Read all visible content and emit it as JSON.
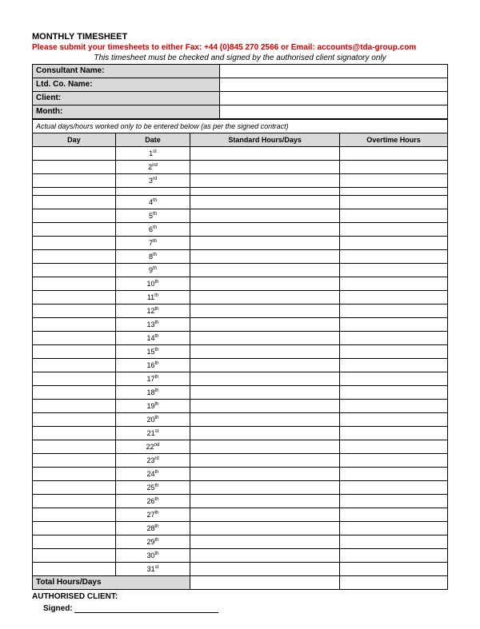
{
  "title": "MONTHLY TIMESHEET",
  "submit_line": "Please submit your timesheets to either Fax: +44 (0)845 270 2566 or Email: accounts@tda-group.com",
  "note_line": "This timesheet must be checked and signed by the authorised client signatory only",
  "info": {
    "consultant_label": "Consultant Name:",
    "consultant_value": "",
    "ltd_label": "Ltd. Co. Name:",
    "ltd_value": "",
    "client_label": "Client:",
    "client_value": "",
    "month_label": "Month:",
    "month_value": ""
  },
  "entry_note": "Actual days/hours worked only to be entered below (as per the signed contract)",
  "headers": {
    "day": "Day",
    "date": "Date",
    "standard": "Standard Hours/Days",
    "overtime": "Overtime Hours"
  },
  "rows_block1": [
    {
      "n": "1",
      "ord": "st"
    },
    {
      "n": "2",
      "ord": "nd"
    },
    {
      "n": "3",
      "ord": "rd"
    }
  ],
  "rows_block2": [
    {
      "n": "4",
      "ord": "th"
    },
    {
      "n": "5",
      "ord": "th"
    },
    {
      "n": "6",
      "ord": "th"
    },
    {
      "n": "7",
      "ord": "th"
    },
    {
      "n": "8",
      "ord": "th"
    },
    {
      "n": "9",
      "ord": "th"
    },
    {
      "n": "10",
      "ord": "th"
    },
    {
      "n": "11",
      "ord": "th"
    },
    {
      "n": "12",
      "ord": "th"
    },
    {
      "n": "13",
      "ord": "th"
    },
    {
      "n": "14",
      "ord": "th"
    },
    {
      "n": "15",
      "ord": "th"
    },
    {
      "n": "16",
      "ord": "th"
    },
    {
      "n": "17",
      "ord": "th"
    },
    {
      "n": "18",
      "ord": "th"
    },
    {
      "n": "19",
      "ord": "th"
    },
    {
      "n": "20",
      "ord": "th"
    },
    {
      "n": "21",
      "ord": "st"
    },
    {
      "n": "22",
      "ord": "nd"
    },
    {
      "n": "23",
      "ord": "rd"
    },
    {
      "n": "24",
      "ord": "th"
    },
    {
      "n": "25",
      "ord": "th"
    },
    {
      "n": "26",
      "ord": "th"
    },
    {
      "n": "27",
      "ord": "th"
    },
    {
      "n": "28",
      "ord": "th"
    },
    {
      "n": "29",
      "ord": "th"
    },
    {
      "n": "30",
      "ord": "th"
    },
    {
      "n": "31",
      "ord": "st"
    }
  ],
  "total_label": "Total Hours/Days",
  "auth_label": "AUTHORISED CLIENT:",
  "signed_label": "Signed:",
  "colors": {
    "header_bg": "#d9d9d9",
    "border": "#000000",
    "text": "#000000",
    "submit_text": "#cc0000",
    "page_bg": "#ffffff"
  },
  "fonts": {
    "title_size_pt": 11,
    "body_size_pt": 10,
    "cell_size_pt": 9
  }
}
